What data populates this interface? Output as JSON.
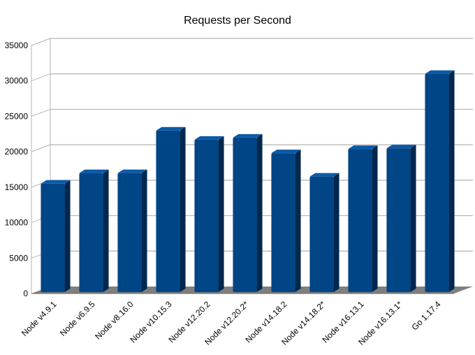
{
  "chart_data": {
    "type": "bar",
    "title": "Requests per Second",
    "xlabel": "",
    "ylabel": "",
    "ylim": [
      0,
      35000
    ],
    "yticks": [
      0,
      5000,
      10000,
      15000,
      20000,
      25000,
      30000,
      35000
    ],
    "grid": true,
    "legend": "none",
    "categories": [
      "Node v4.9.1",
      "Node v6.9.5",
      "Node v8.16.0",
      "Node v10.15.3",
      "Node v12.20.2",
      "Node v12.20.2*",
      "Node v14.18.2",
      "Node v14.18.2*",
      "Node v16.13.1",
      "Node v16.13.1*",
      "Go 1.17.4"
    ],
    "values": [
      15500,
      17000,
      17000,
      23000,
      21700,
      22000,
      19800,
      16500,
      20400,
      20500,
      31000
    ],
    "colors": {
      "bar_front": "#004586",
      "bar_top": "#0b5aa8",
      "bar_side": "#00284f",
      "gridline": "#b3b3b3",
      "floor": "#7f7f7f"
    }
  }
}
